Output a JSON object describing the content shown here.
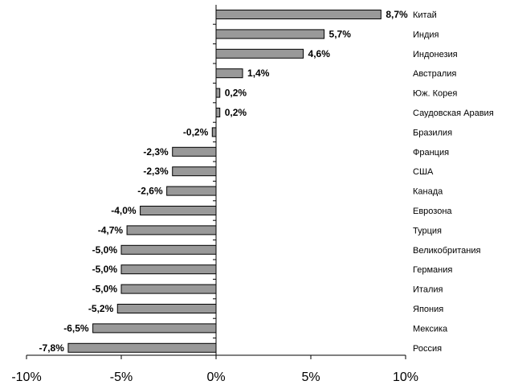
{
  "chart_data": {
    "type": "bar",
    "orientation": "horizontal",
    "categories": [
      "Китай",
      "Индия",
      "Индонезия",
      "Австралия",
      "Юж. Корея",
      "Саудовская Аравия",
      "Бразилия",
      "Франция",
      "США",
      "Канада",
      "Еврозона",
      "Турция",
      "Великобритания",
      "Германия",
      "Италия",
      "Япония",
      "Мексика",
      "Россия"
    ],
    "values": [
      8.7,
      5.7,
      4.6,
      1.4,
      0.2,
      0.2,
      -0.2,
      -2.3,
      -2.3,
      -2.6,
      -4.0,
      -4.7,
      -5.0,
      -5.0,
      -5.0,
      -5.2,
      -6.5,
      -7.8
    ],
    "value_labels": [
      "8,7%",
      "5,7%",
      "4,6%",
      "1,4%",
      "0,2%",
      "0,2%",
      "-0,2%",
      "-2,3%",
      "-2,3%",
      "-2,6%",
      "-4,0%",
      "-4,7%",
      "-5,0%",
      "-5,0%",
      "-5,0%",
      "-5,2%",
      "-6,5%",
      "-7,8%"
    ],
    "xlim": [
      -10,
      10
    ],
    "x_ticks": [
      -10,
      -5,
      0,
      5,
      10
    ],
    "x_tick_labels": [
      "-10%",
      "-5%",
      "0%",
      "5%",
      "10%"
    ],
    "category_labels_position": "right",
    "grid": false,
    "legend": "none",
    "colors": {
      "bar_fill": "#999999",
      "bar_stroke": "#000000"
    }
  }
}
